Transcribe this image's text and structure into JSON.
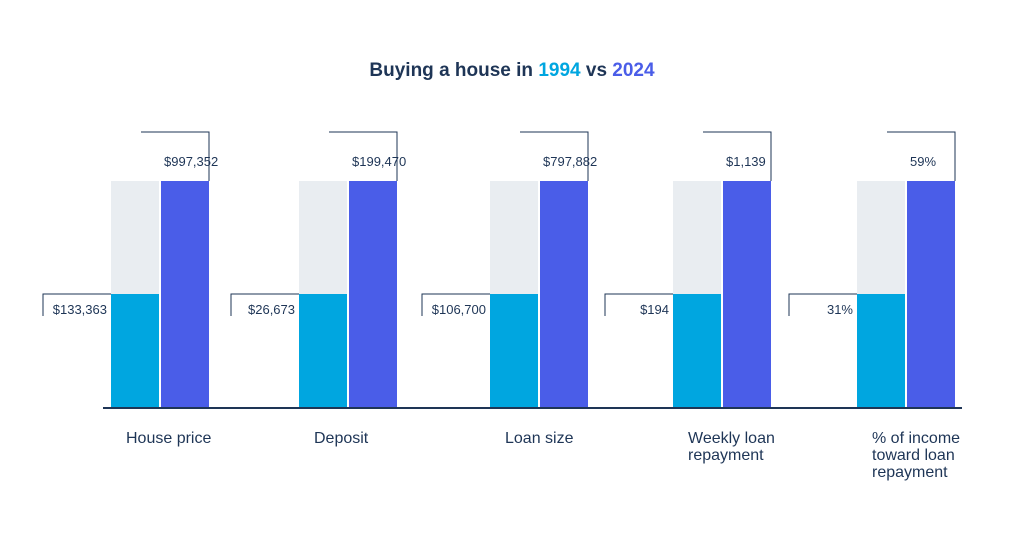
{
  "title": {
    "prefix": "Buying a house in ",
    "year_a": "1994",
    "middle": " vs ",
    "year_b": "2024"
  },
  "colors": {
    "series_1994": "#00a6e0",
    "series_2024": "#4a5de8",
    "background_bar": "#e9edf1",
    "text": "#1e3556"
  },
  "chart_data": {
    "type": "bar",
    "title": "Buying a house in 1994 vs 2024",
    "normalized": "each category scaled so the 2024 bar has full height",
    "categories": [
      "House price",
      "Deposit",
      "Loan size",
      "Weekly loan\nrepayment",
      "% of income\ntoward loan\nrepayment"
    ],
    "series": [
      {
        "name": "1994",
        "color": "#00a6e0",
        "values": [
          133363,
          26673,
          106700,
          194,
          31
        ],
        "labels": [
          "$133,363",
          "$26,673",
          "$106,700",
          "$194",
          "31%"
        ],
        "relative_height": [
          0.5,
          0.5,
          0.5,
          0.5,
          0.5
        ]
      },
      {
        "name": "2024",
        "color": "#4a5de8",
        "values": [
          997352,
          199470,
          797882,
          1139,
          59
        ],
        "labels": [
          "$997,352",
          "$199,470",
          "$797,882",
          "$1,139",
          "59%"
        ],
        "relative_height": [
          1,
          1,
          1,
          1,
          1
        ]
      }
    ],
    "xlabel": "",
    "ylabel": "",
    "grid": false
  }
}
